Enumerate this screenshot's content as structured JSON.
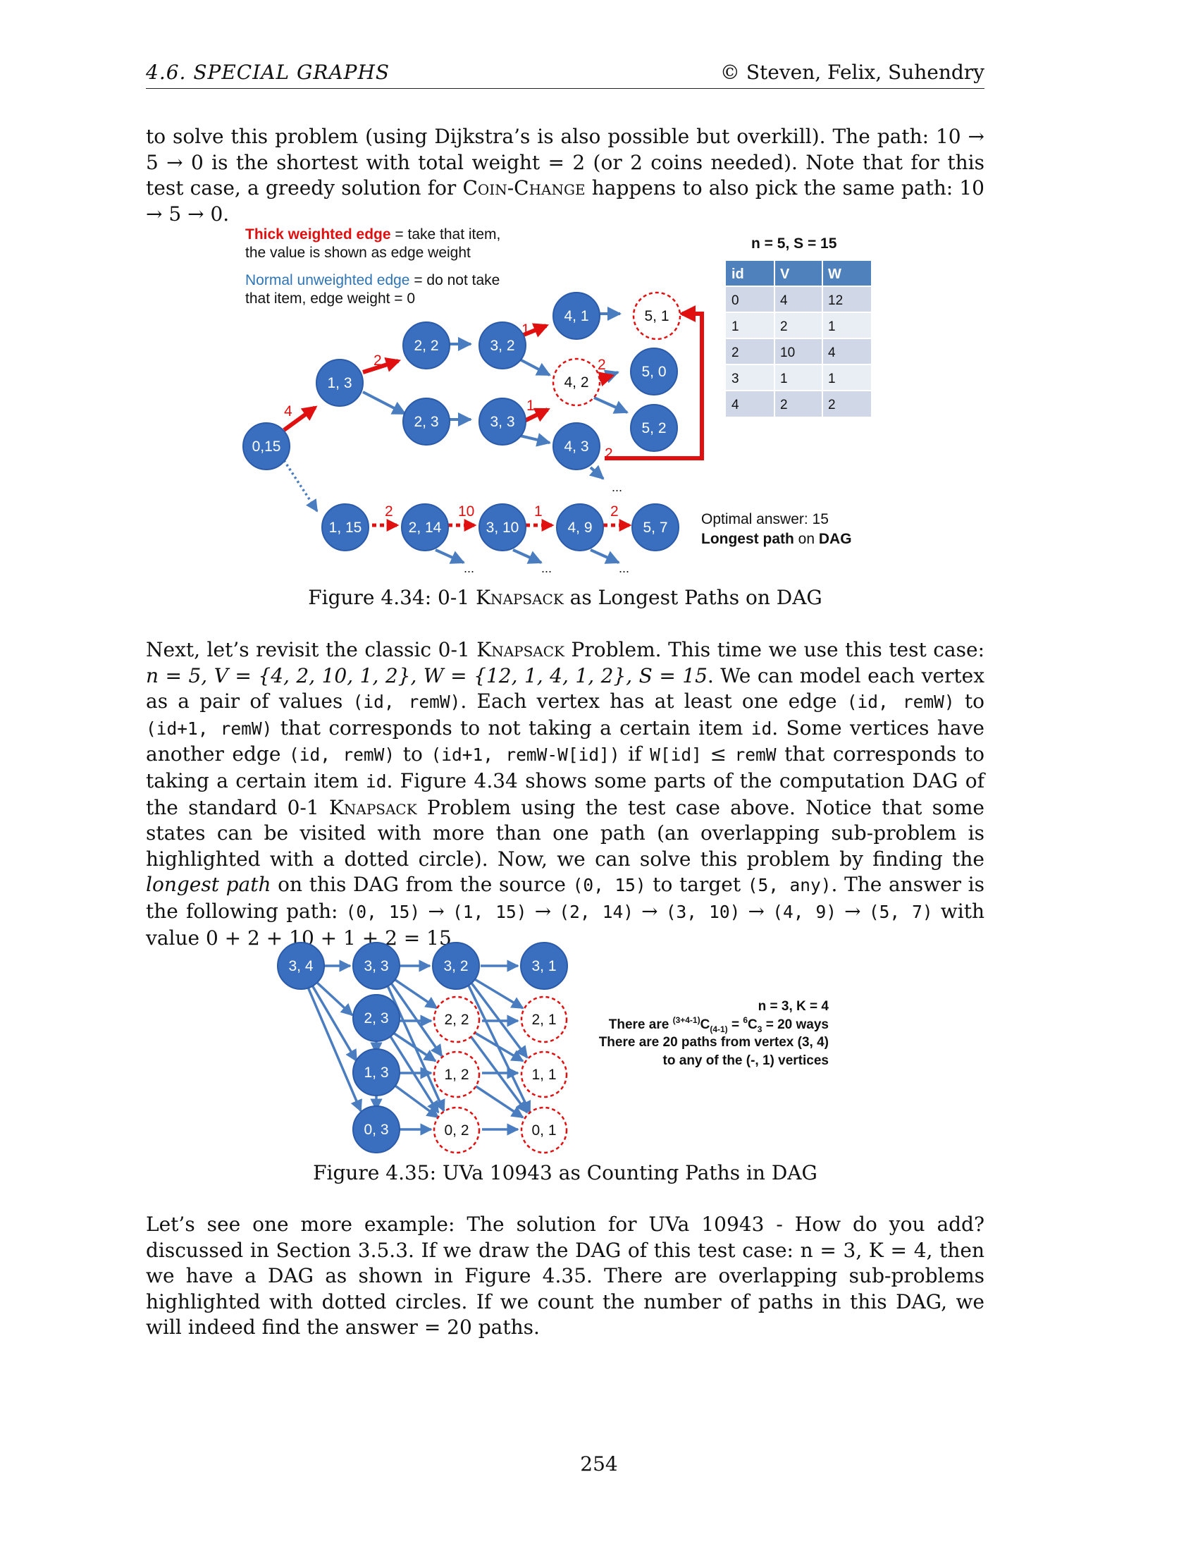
{
  "header": {
    "section": "4.6.  SPECIAL GRAPHS",
    "copyright": "© Steven, Felix, Suhendry"
  },
  "para1": {
    "t1": "to solve this problem (using Dijkstra’s is also possible but overkill). The path: 10 → 5 → 0 is the shortest with total weight = 2 (or 2 coins needed). Note that for this test case, a greedy solution for ",
    "sc1": "Coin-Change",
    "t2": " happens to also pick the same path: 10 → 5 → 0."
  },
  "fig434": {
    "legend_red_a": "Thick weighted edge",
    "legend_red_b": " = take that item,",
    "legend_red_c": "the value is shown as edge weight",
    "legend_blue_a": "Normal unweighted edge",
    "legend_blue_b": " = do not take",
    "legend_blue_c": "that item, edge weight = 0",
    "table_title": "n = 5, S = 15",
    "table_headers": [
      "id",
      "V",
      "W"
    ],
    "table_rows": [
      [
        "0",
        "4",
        "12"
      ],
      [
        "1",
        "2",
        "1"
      ],
      [
        "2",
        "10",
        "4"
      ],
      [
        "3",
        "1",
        "1"
      ],
      [
        "4",
        "2",
        "2"
      ]
    ],
    "optimal_line1": "Optimal answer: 15",
    "optimal_line2a": "Longest path",
    "optimal_line2b": " on ",
    "optimal_line2c": "DAG",
    "nodes": {
      "n015": "0,15",
      "n13": "1, 3",
      "n22": "2, 2",
      "n23": "2, 3",
      "n32": "3, 2",
      "n33": "3, 3",
      "n41": "4, 1",
      "n42": "4, 2",
      "n43": "4, 3",
      "n51": "5, 1",
      "n50": "5, 0",
      "n52": "5, 2",
      "n115": "1, 15",
      "n214": "2, 14",
      "n310": "3, 10",
      "n49": "4, 9",
      "n57": "5, 7"
    },
    "weights": {
      "w4": "4",
      "w2a": "2",
      "w1a": "1",
      "w2b": "2",
      "w1b": "1",
      "w2c": "2",
      "w2d": "2",
      "w10": "10",
      "w1c": "1",
      "w2e": "2"
    },
    "ellipsis": "...",
    "caption_a": "Figure 4.34: 0-1 ",
    "caption_sc": "Knapsack",
    "caption_b": " as Longest Paths on DAG"
  },
  "para2": {
    "s1": "Next, let’s revisit the classic 0-1 ",
    "s2": "Knapsack",
    "s3": " Problem. This time we use this test case: ",
    "math1": "n = 5, V = {4, 2, 10, 1, 2}, W = {12, 1, 4, 1, 2}, S = 15",
    "s4": ". We can model each vertex as a pair of values ",
    "c1": "(id, remW)",
    "s5": ". Each vertex has at least one edge ",
    "c2": "(id, remW)",
    "s6": " to ",
    "c3": "(id+1, remW)",
    "s7": " that corresponds to not taking a certain item ",
    "c4": "id",
    "s8": ". Some vertices have another edge ",
    "c5": "(id, remW)",
    "s9": " to ",
    "c6": "(id+1, remW-W[id])",
    "s10": " if ",
    "c7": "W[id]",
    "s11": " ≤ ",
    "c8": "remW",
    "s12": " that corresponds to taking a certain item ",
    "c9": "id",
    "s13": ". Figure 4.34 shows some parts of the computation DAG of the standard 0-1 ",
    "s14": "Knapsack",
    "s15": " Problem using the test case above. Notice that some states can be visited with more than one path (an overlapping sub-problem is highlighted with a dotted circle). Now, we can solve this problem by finding the ",
    "s16": "longest path",
    "s17": " on this DAG from the source ",
    "c10": "(0, 15)",
    "s18": " to target ",
    "c11": "(5, any)",
    "s19": ". The answer is the following path: ",
    "c12": "(0, 15)",
    "a1": " → ",
    "c13": "(1, 15)",
    "a2": " → ",
    "c14": "(2, 14)",
    "a3": " → ",
    "c15": "(3, 10)",
    "a4": " → ",
    "c16": "(4, 9)",
    "a5": " → ",
    "c17": "(5, 7)",
    "s20": " with value 0 + 2 + 10 + 1 + 2 = 15."
  },
  "fig435": {
    "nodes": {
      "m34": "3, 4",
      "m33": "3, 3",
      "m32": "3, 2",
      "m31": "3, 1",
      "m23": "2, 3",
      "m22": "2, 2",
      "m21": "2, 1",
      "m13": "1, 3",
      "m12": "1, 2",
      "m11": "1, 1",
      "m03": "0, 3",
      "m02": "0, 2",
      "m01": "0, 1"
    },
    "note_line1": "n = 3, K = 4",
    "note_line2_pre": "There are ",
    "note_line2_sup1": "(3+4-1)",
    "note_line2_c": "C",
    "note_line2_sub1": "(4-1)",
    "note_line2_mid": " = ",
    "note_line2_sup2": "6",
    "note_line2_c2": "C",
    "note_line2_sub2": "3",
    "note_line2_post": " = 20 ways",
    "note_line3": "There are 20 paths from vertex (3, 4)",
    "note_line4": "to any of the (-, 1) vertices",
    "caption": "Figure 4.35: UVa 10943 as Counting Paths in DAG"
  },
  "para3": {
    "text": "Let’s see one more example: The solution for UVa 10943 - How do you add? discussed in Section 3.5.3. If we draw the DAG of this test case: n = 3, K = 4, then we have a DAG as shown in Figure 4.35. There are overlapping sub-problems highlighted with dotted circles. If we count the number of paths in this DAG, we will indeed find the answer = 20 paths."
  },
  "page_number": "254",
  "colors": {
    "node_blue": "#3a6fbf",
    "edge_blue": "#4a7cc0",
    "edge_red": "#e01010",
    "table_header": "#4f81bd"
  }
}
